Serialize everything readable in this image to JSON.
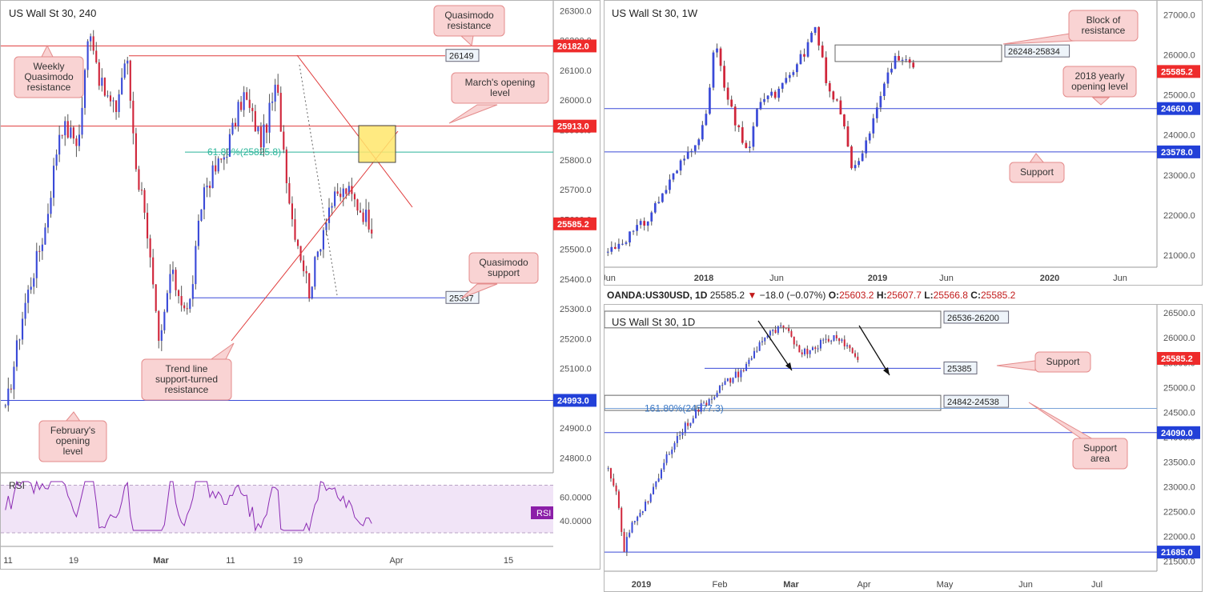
{
  "panels": {
    "left": {
      "title": "US Wall St 30, 240"
    },
    "top_right": {
      "title": "US Wall St 30, 1W"
    },
    "bottom_right": {
      "title": "US Wall St 30, 1D"
    }
  },
  "ohlc_bar": {
    "symbol": "OANDA:US30USD, 1D",
    "last": "25585.2",
    "change": "−18.0 (−0.07%)",
    "o_label": "O:",
    "o": "25603.2",
    "h_label": "H:",
    "h": "25607.7",
    "l_label": "L:",
    "l": "25566.8",
    "c_label": "C:",
    "c": "25585.2"
  },
  "colors": {
    "bull": "#3a4ad8",
    "bear": "#d0253a",
    "resistance": "#e03c3c",
    "support": "#3a4ad8",
    "fib": "#2bb59a",
    "zone": "#ffe66b",
    "rsi": "#8b2bb3",
    "callout_bg": "#f9d3d3",
    "callout_border": "#e48b8b",
    "price_tag_red": "#ee2b2b",
    "price_tag_blue": "#2240d8",
    "rsi_tag": "#8b1ea8"
  },
  "chart_data": [
    {
      "id": "left",
      "type": "candlestick",
      "title": "US Wall St 30, 240",
      "ylim": [
        24750,
        26320
      ],
      "y_ticks": [
        "26300.0",
        "26200.0",
        "26100.0",
        "26000.0",
        "25900.0",
        "25800.0",
        "25700.0",
        "25600.0",
        "25500.0",
        "25400.0",
        "25300.0",
        "25200.0",
        "25100.0",
        "25000.0",
        "24900.0",
        "24800.0"
      ],
      "x_ticks": [
        "11",
        "19",
        "Mar",
        "11",
        "19",
        "Apr",
        "15"
      ],
      "price_tags": [
        {
          "text": "26182.0",
          "value": 26182,
          "kind": "red"
        },
        {
          "text": "25913.0",
          "value": 25913,
          "kind": "red"
        },
        {
          "text": "25585.2",
          "value": 25585.2,
          "kind": "red"
        },
        {
          "text": "24993.0",
          "value": 24993,
          "kind": "blue"
        }
      ],
      "boxed_labels": [
        {
          "text": "26149",
          "value": 26149
        },
        {
          "text": "25337",
          "value": 25337
        }
      ],
      "fib_label": "61.80%(25825.8)",
      "fib_value": 25825.8,
      "callouts": [
        {
          "text": "Quasimodo\nresistance"
        },
        {
          "text": "Weekly\nQuasimodo\nresistance"
        },
        {
          "text": "March's opening\nlevel"
        },
        {
          "text": "Quasimodo\nsupport"
        },
        {
          "text": "Trend line\nsupport-turned\nresistance"
        },
        {
          "text": "February's\nopening\nlevel"
        }
      ],
      "rsi": {
        "label": "RSI",
        "tag": "RSI",
        "y_ticks": [
          "60.0000",
          "40.0000"
        ],
        "ylim": [
          28,
          75
        ]
      }
    },
    {
      "id": "top_right",
      "type": "candlestick",
      "title": "US Wall St 30, 1W",
      "ylim": [
        20700,
        27250
      ],
      "y_ticks": [
        "27000.0",
        "26000.0",
        "25000.0",
        "24000.0",
        "23000.0",
        "22000.0",
        "21000.0"
      ],
      "x_ticks": [
        "Jun",
        "2018",
        "Jun",
        "2019",
        "Jun",
        "2020",
        "Jun"
      ],
      "price_tags": [
        {
          "text": "25585.2",
          "value": 25585.2,
          "kind": "red"
        },
        {
          "text": "24660.0",
          "value": 24660,
          "kind": "blue"
        },
        {
          "text": "23578.0",
          "value": 23578,
          "kind": "blue"
        }
      ],
      "boxed_labels": [
        {
          "text": "26248-25834",
          "value": 26248
        }
      ],
      "callouts": [
        {
          "text": "Block of\nresistance"
        },
        {
          "text": "2018 yearly\nopening level"
        },
        {
          "text": "Support"
        }
      ]
    },
    {
      "id": "bottom_right",
      "type": "candlestick",
      "title": "US Wall St 30, 1D",
      "ylim": [
        21300,
        26600
      ],
      "y_ticks": [
        "26500.0",
        "26000.0",
        "25500.0",
        "25000.0",
        "24500.0",
        "24000.0",
        "23500.0",
        "23000.0",
        "22500.0",
        "22000.0",
        "21500.0"
      ],
      "x_ticks": [
        "2019",
        "Feb",
        "Mar",
        "Apr",
        "May",
        "Jun",
        "Jul"
      ],
      "price_tags": [
        {
          "text": "25585.2",
          "value": 25585.2,
          "kind": "red"
        },
        {
          "text": "24090.0",
          "value": 24090,
          "kind": "blue"
        },
        {
          "text": "21685.0",
          "value": 21685,
          "kind": "blue"
        }
      ],
      "boxed_labels": [
        {
          "text": "26536-26200",
          "value": 26536
        },
        {
          "text": "25385",
          "value": 25385
        },
        {
          "text": "24842-24538",
          "value": 24842
        }
      ],
      "fib_label": "161.80%(24577.3)",
      "fib_value": 24577.3,
      "callouts": [
        {
          "text": "Support"
        },
        {
          "text": "Support\narea"
        }
      ]
    }
  ]
}
